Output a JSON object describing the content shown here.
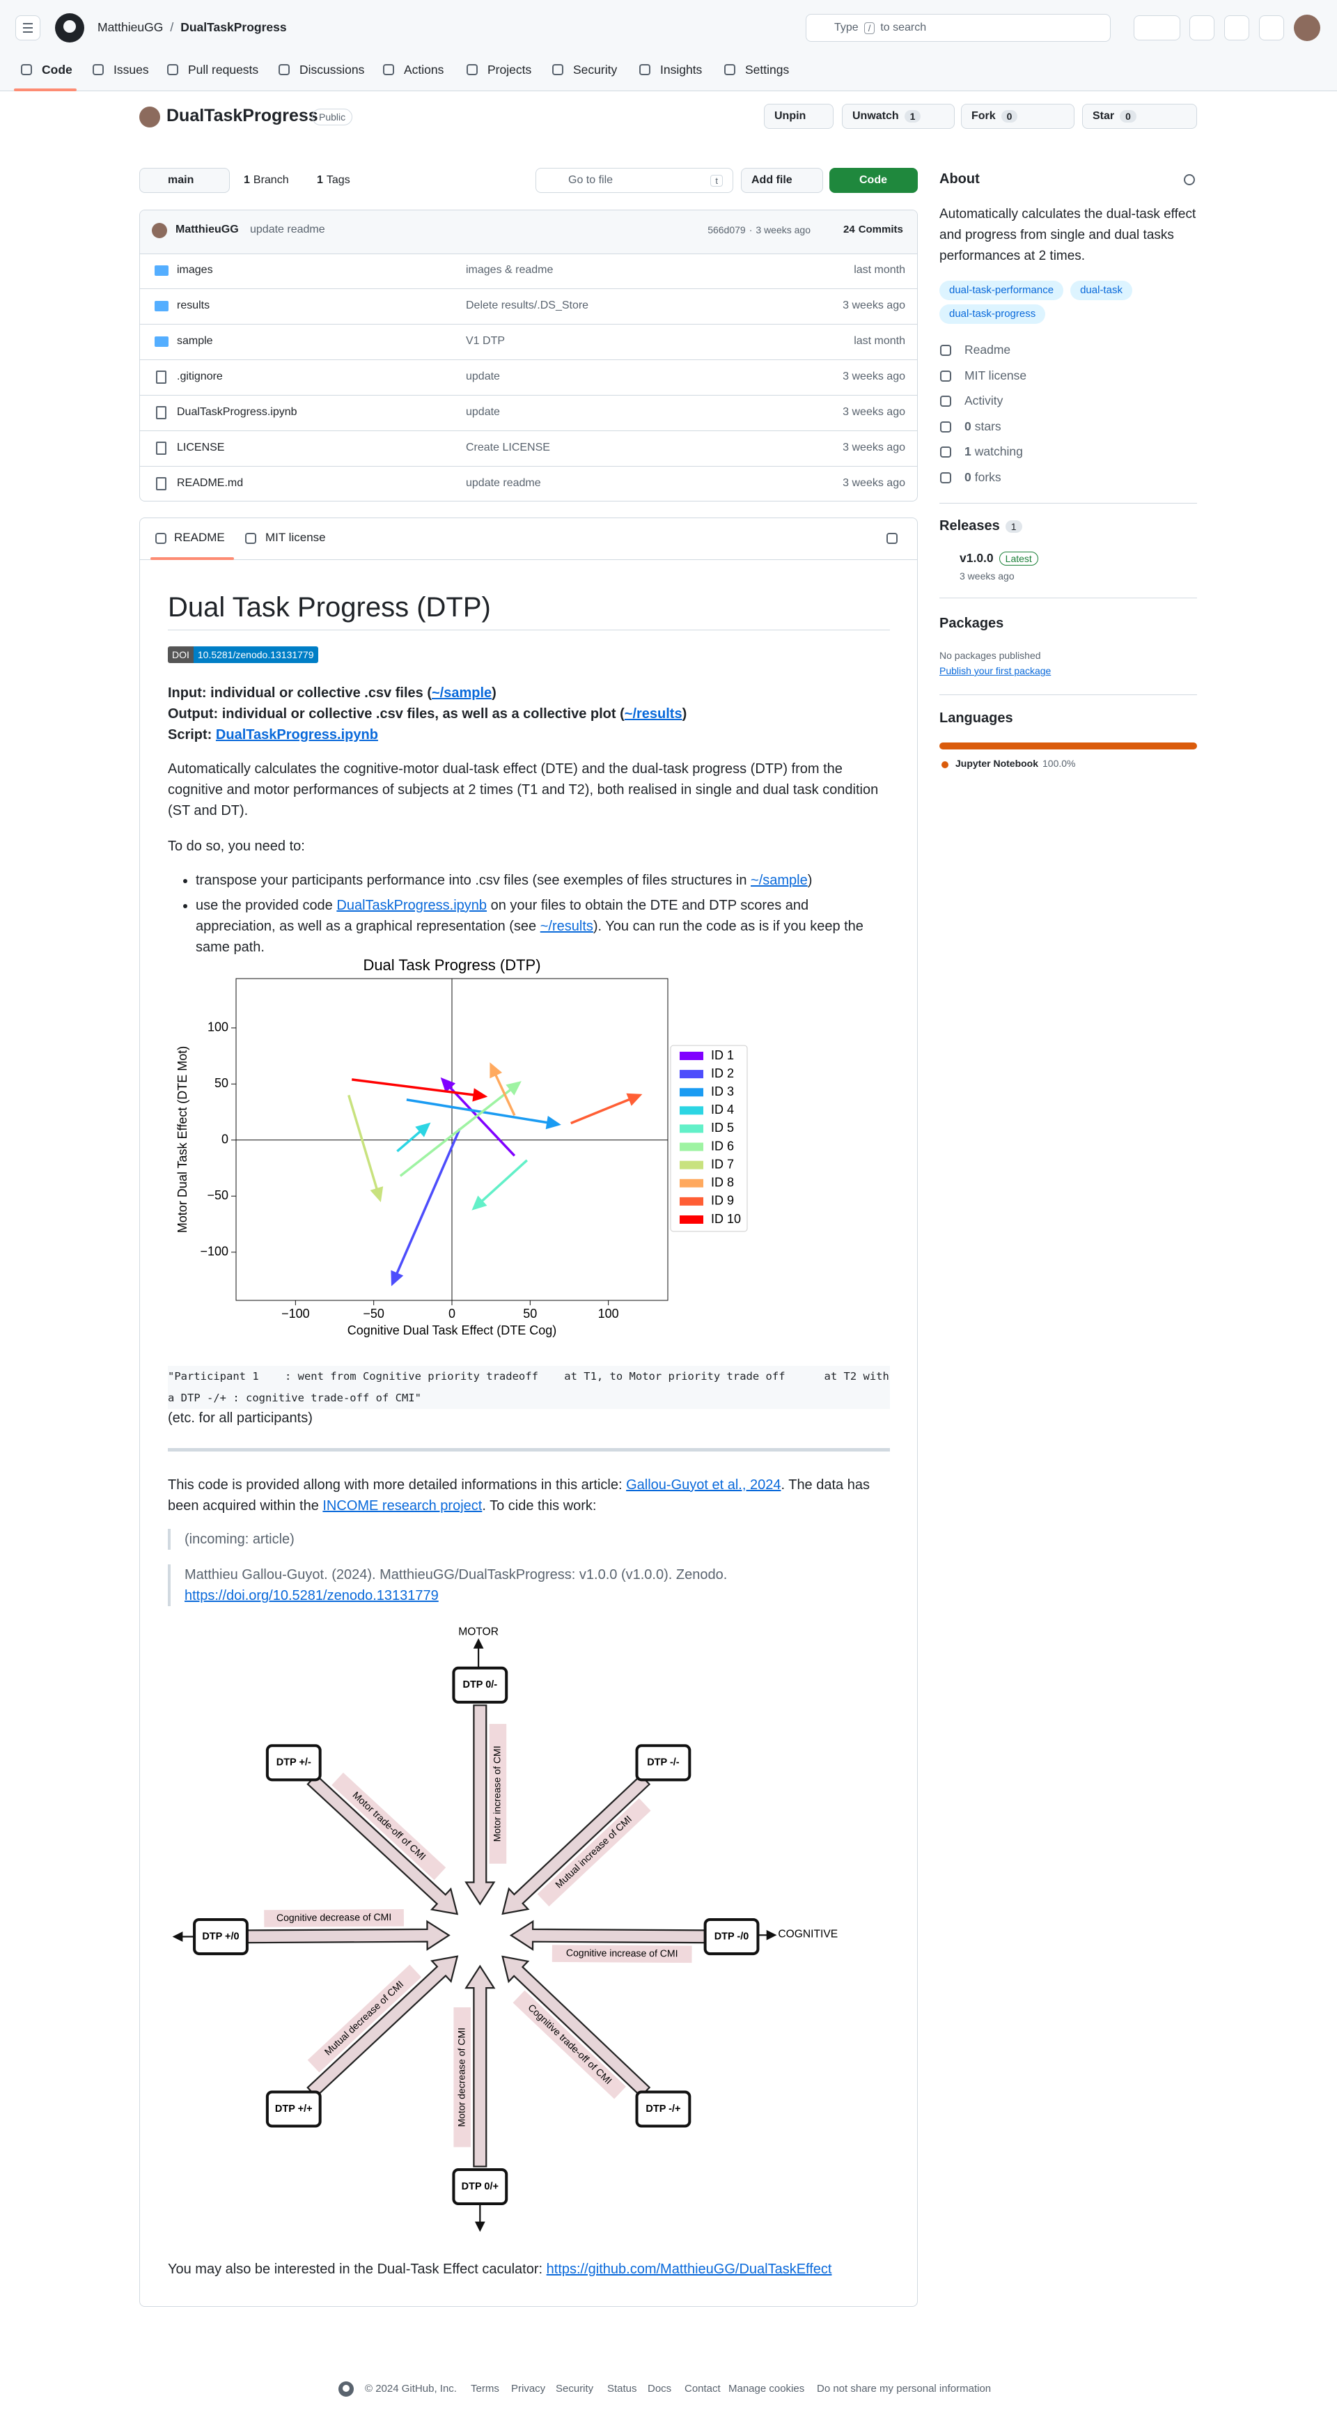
{
  "header": {
    "owner": "MatthieuGG",
    "separator": "/",
    "repo": "DualTaskProgress",
    "search_prefix": "Type",
    "search_key": "/",
    "search_suffix": "to search"
  },
  "nav": [
    "Code",
    "Issues",
    "Pull requests",
    "Discussions",
    "Actions",
    "Projects",
    "Security",
    "Insights",
    "Settings"
  ],
  "repo": {
    "name": "DualTaskProgress",
    "visibility": "Public",
    "unpin": "Unpin",
    "watch": "Unwatch",
    "watch_count": 1,
    "fork": "Fork",
    "fork_count": 0,
    "star": "Star",
    "star_count": 0
  },
  "toolbar": {
    "branch": "main",
    "branch_count": 1,
    "branch_label": "Branch",
    "tag_count": 1,
    "tag_label": "Tags",
    "go_to_file": "Go to file",
    "go_key": "t",
    "add_file": "Add file",
    "code": "Code"
  },
  "commit": {
    "author": "MatthieuGG",
    "message": "update readme",
    "hash": "566d079",
    "separator": "·",
    "age": "3 weeks ago",
    "count": 24,
    "label": "Commits"
  },
  "files": [
    {
      "kind": "dir",
      "name": "images",
      "message": "images & readme",
      "age": "last month"
    },
    {
      "kind": "dir",
      "name": "results",
      "message": "Delete results/.DS_Store",
      "age": "3 weeks ago"
    },
    {
      "kind": "dir",
      "name": "sample",
      "message": "V1 DTP",
      "age": "last month"
    },
    {
      "kind": "file",
      "name": ".gitignore",
      "message": "update",
      "age": "3 weeks ago"
    },
    {
      "kind": "file",
      "name": "DualTaskProgress.ipynb",
      "message": "update",
      "age": "3 weeks ago"
    },
    {
      "kind": "file",
      "name": "LICENSE",
      "message": "Create LICENSE",
      "age": "3 weeks ago"
    },
    {
      "kind": "file",
      "name": "README.md",
      "message": "update readme",
      "age": "3 weeks ago"
    }
  ],
  "readme_tabs": {
    "readme": "README",
    "license": "MIT license"
  },
  "readme": {
    "title": "Dual Task Progress (DTP)",
    "doi_label": "DOI",
    "doi_value": "10.5281/zenodo.13131779",
    "io": [
      [
        {
          "text": "Input: individual or collective .csv files (",
          "style": "b"
        },
        {
          "text": "~/sample",
          "style": "ab"
        },
        {
          "text": ")",
          "style": "b"
        }
      ],
      [
        {
          "text": "Output: individual or collective .csv files, as well as a collective plot (",
          "style": "b"
        },
        {
          "text": "~/results",
          "style": "ab"
        },
        {
          "text": ")",
          "style": "b"
        }
      ],
      [
        {
          "text": "Script: ",
          "style": "b"
        },
        {
          "text": "DualTaskProgress.ipynb",
          "style": "ab"
        }
      ]
    ],
    "intro": [
      {
        "text": "Automatically calculates the cognitive-motor dual-task effect (DTE) and the dual-task progress (DTP) from the cognitive and motor performances of subjects at 2 times (T1 and T2), both realised in single and dual task condition (ST and DT).",
        "style": "t"
      }
    ],
    "todo": "To do so, you need to:",
    "steps": [
      [
        {
          "text": "transpose your participants performance into .csv files (see exemples of files structures in ",
          "style": "t"
        },
        {
          "text": "~/sample",
          "style": "a"
        },
        {
          "text": ")",
          "style": "t"
        }
      ],
      [
        {
          "text": "use the provided code ",
          "style": "t"
        },
        {
          "text": "DualTaskProgress.ipynb",
          "style": "a"
        },
        {
          "text": " on your files to obtain the DTE and DTP scores and appreciation, as well as a graphical representation (see ",
          "style": "t"
        },
        {
          "text": "~/results",
          "style": "a"
        },
        {
          "text": "). You can run the code as is if you keep the same path.",
          "style": "t"
        }
      ]
    ],
    "output_example": "\"Participant 1    : went from Cognitive priority tradeoff    at T1, to Motor priority trade off      at T2 with a DTP -/+ : cognitive trade-off of CMI\"",
    "etc": "(etc. for all participants)",
    "source": [
      {
        "text": "This code is provided allong with more detailed informations in this article: ",
        "style": "t"
      },
      {
        "text": "Gallou-Guyot et al., 2024",
        "style": "a"
      },
      {
        "text": ". The data has been acquired within the ",
        "style": "t"
      },
      {
        "text": "INCOME research project",
        "style": "a"
      },
      {
        "text": ". To cide this work:",
        "style": "t"
      }
    ],
    "quotes": [
      [
        {
          "text": "(incoming: article)",
          "style": "t"
        }
      ],
      [
        {
          "text": "Matthieu Gallou-Guyot. (2024). MatthieuGG/DualTaskProgress: v1.0.0 (v1.0.0). Zenodo. ",
          "style": "t"
        },
        {
          "text": "https://doi.org/10.5281/zenodo.13131779",
          "style": "a"
        }
      ]
    ],
    "diagram": {
      "motor": "MOTOR",
      "cognitive": "COGNITIVE",
      "nodes": [
        "DTP 0/-",
        "DTP -/-",
        "DTP -/0",
        "DTP -/+",
        "DTP 0/+",
        "DTP +/+",
        "DTP +/0",
        "DTP +/-"
      ],
      "arrows": [
        "Motor increase of CMI",
        "Mutual increase of CMI",
        "Cognitive increase of CMI",
        "Cognitive trade-off of CMI",
        "Motor decrease of CMI",
        "Mutual decrease of CMI",
        "Cognitive decrease of CMI",
        "Motor trade-off of CMI"
      ]
    },
    "closing": [
      {
        "text": "You may also be interested in the Dual-Task Effect caculator: ",
        "style": "t"
      },
      {
        "text": "https://github.com/MatthieuGG/DualTaskEffect",
        "style": "a"
      }
    ]
  },
  "chart_data": {
    "type": "arrow",
    "title": "Dual Task Progress (DTP)",
    "x_label": "Cognitive Dual Task Effect (DTE Cog)",
    "y_label": "Motor Dual Task Effect (DTE Mot)",
    "xlim": [
      -138,
      138
    ],
    "ylim": [
      -143,
      144
    ],
    "xticks": [
      {
        "value": -100,
        "label": "−100"
      },
      {
        "value": -50,
        "label": "−50"
      },
      0,
      50,
      100
    ],
    "yticks": [
      {
        "value": -100,
        "label": "−100"
      },
      {
        "value": -50,
        "label": "−50"
      },
      0,
      50,
      100
    ],
    "grid": false,
    "legend": "outside right",
    "series": [
      {
        "name": "ID 1",
        "color": "#8000ff",
        "x": [
          40,
          -6
        ],
        "values": [
          -14,
          54
        ]
      },
      {
        "name": "ID 2",
        "color": "#4d4dfc",
        "x": [
          5,
          -38
        ],
        "values": [
          10,
          -128
        ]
      },
      {
        "name": "ID 3",
        "color": "#1a9bf2",
        "x": [
          -29,
          68
        ],
        "values": [
          36,
          14
        ]
      },
      {
        "name": "ID 4",
        "color": "#2cd5e3",
        "x": [
          -35,
          -15
        ],
        "values": [
          -10,
          14
        ]
      },
      {
        "name": "ID 5",
        "color": "#62f0c8",
        "x": [
          48,
          14
        ],
        "values": [
          -18,
          -61
        ]
      },
      {
        "name": "ID 6",
        "color": "#9ef3a2",
        "x": [
          -33,
          43
        ],
        "values": [
          -32,
          51
        ]
      },
      {
        "name": "ID 7",
        "color": "#c8e27e",
        "x": [
          -66,
          -46
        ],
        "values": [
          40,
          -53
        ]
      },
      {
        "name": "ID 8",
        "color": "#ffa95e",
        "x": [
          40,
          25
        ],
        "values": [
          22,
          67
        ]
      },
      {
        "name": "ID 9",
        "color": "#ff5e34",
        "x": [
          76,
          120
        ],
        "values": [
          15,
          40
        ]
      },
      {
        "name": "ID 10",
        "color": "#ff0000",
        "x": [
          -64,
          21
        ],
        "values": [
          54,
          39
        ]
      }
    ]
  },
  "about": {
    "title": "About",
    "description": "Automatically calculates the dual-task effect and progress from single and dual tasks performances at 2 times.",
    "topics": [
      "dual-task-performance",
      "dual-task",
      "dual-task-progress"
    ],
    "links": [
      "Readme",
      "MIT license",
      "Activity"
    ],
    "stats": [
      {
        "count": 0,
        "label": "stars"
      },
      {
        "count": 1,
        "label": "watching"
      },
      {
        "count": 0,
        "label": "forks"
      }
    ]
  },
  "releases": {
    "title": "Releases",
    "count": 1,
    "tag": "v1.0.0",
    "badge": "Latest",
    "age": "3 weeks ago"
  },
  "packages": {
    "title": "Packages",
    "text": "No packages published",
    "link": "Publish your first package"
  },
  "languages": {
    "title": "Languages",
    "items": [
      {
        "name": "Jupyter Notebook",
        "value": 100,
        "value_label": "100.0%",
        "color": "#da5b0b"
      }
    ]
  },
  "footer": [
    "© 2024 GitHub, Inc.",
    "Terms",
    "Privacy",
    "Security",
    "Status",
    "Docs",
    "Contact",
    "Manage cookies",
    "Do not share my personal information"
  ]
}
